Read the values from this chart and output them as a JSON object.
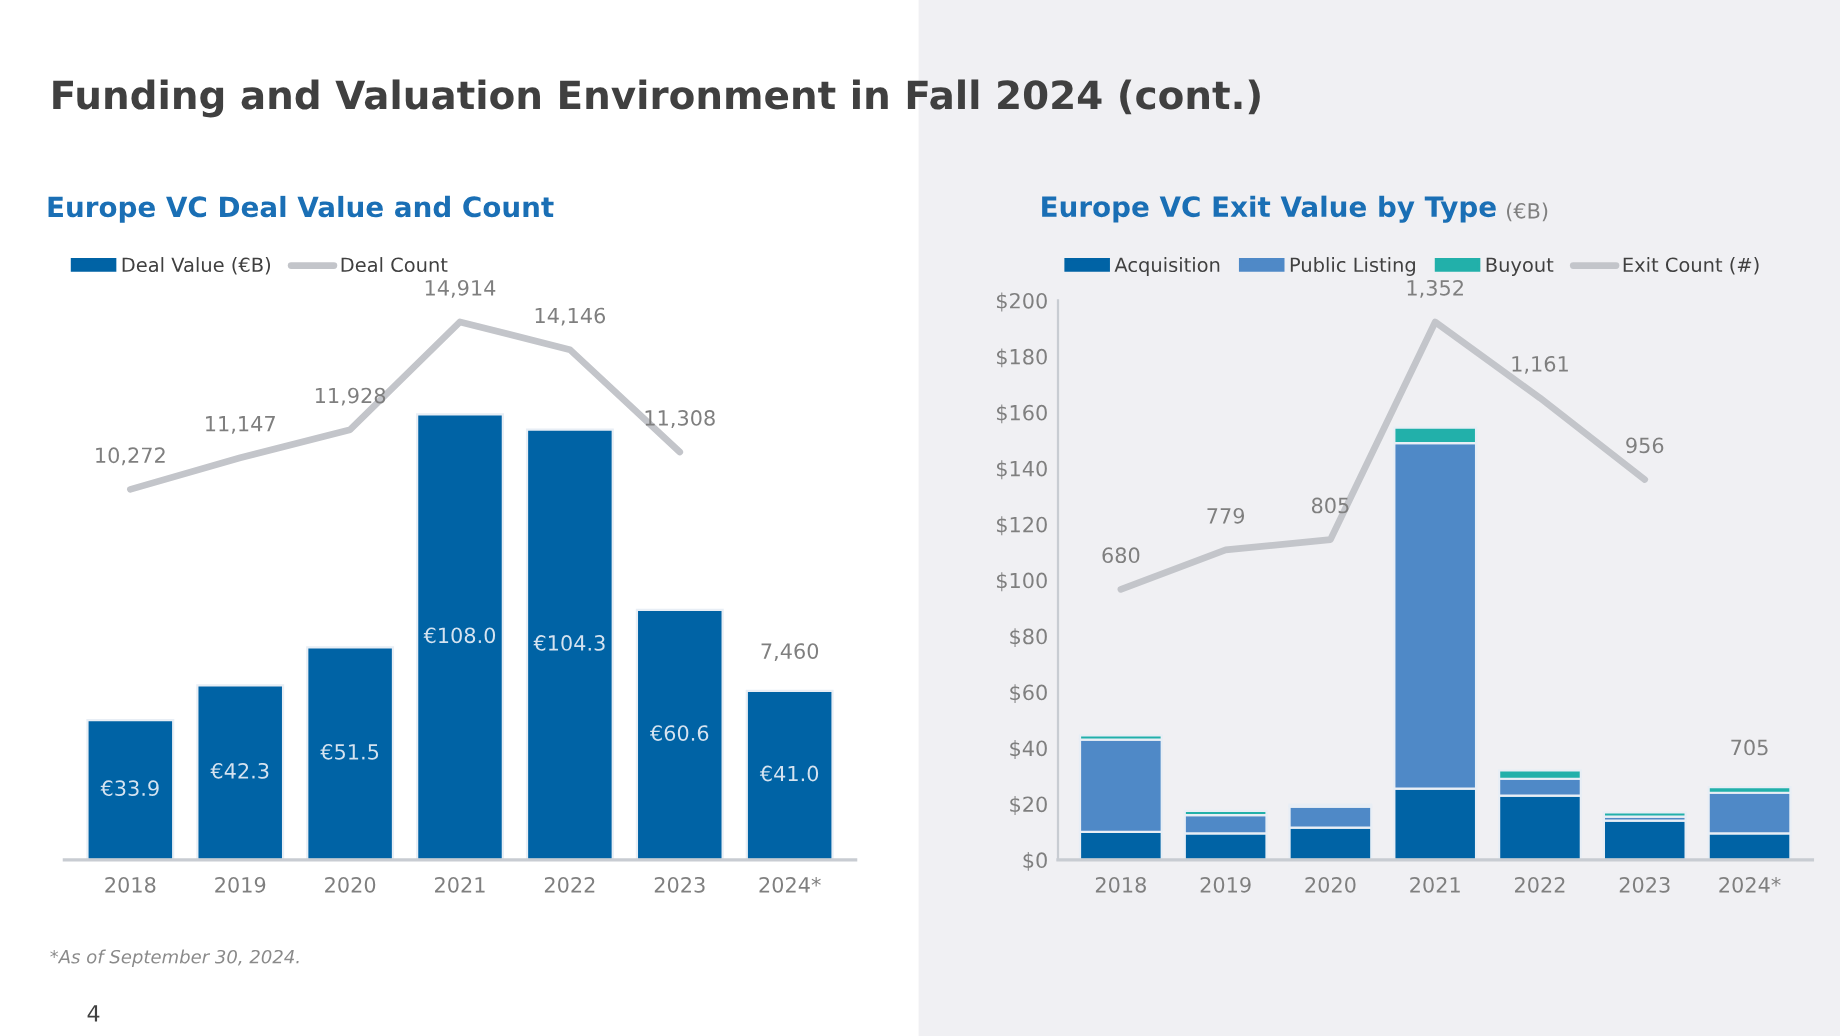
{
  "chart_data": [
    {
      "type": "bar",
      "title": "Europe VC Deal Value and Count",
      "categories": [
        "2018",
        "2019",
        "2020",
        "2021",
        "2022",
        "2023",
        "2024*"
      ],
      "legend": "top left",
      "grid": false,
      "tick_labels": "x",
      "series": [
        {
          "name": "Deal Value (€B)",
          "color": "#0063a5",
          "values": [
            33.9,
            42.3,
            51.5,
            108.0,
            104.3,
            60.6,
            41.0
          ],
          "value_labels": [
            "€33.9",
            "€42.3",
            "€51.5",
            "€108.0",
            "€104.3",
            "€60.6",
            "€41.0"
          ]
        },
        {
          "name": "Deal Count",
          "type": "line",
          "axis": "y2",
          "color": "#c3c5ca",
          "marker": "none",
          "values": [
            10272,
            11147,
            11928,
            14914,
            14146,
            11308,
            null
          ],
          "value_labels": [
            "10,272",
            "11,147",
            "11,928",
            "14,914",
            "14,146",
            "11,308",
            null
          ]
        }
      ],
      "annotations": [
        "Funding and Valuation Environment in Fall 2024 (cont.)",
        "*As of September 30, 2024.",
        "4",
        "7,460"
      ]
    },
    {
      "type": "bar",
      "title": "Europe VC Exit Value by Type",
      "subtitle": "(€B)",
      "categories": [
        "2018",
        "2019",
        "2020",
        "2021",
        "2022",
        "2023",
        "2024*"
      ],
      "stacked": true,
      "legend": "top left",
      "grid": false,
      "ylim": [
        0,
        200
      ],
      "yticks": [
        {
          "value": 0,
          "label": "$0"
        },
        {
          "value": 20,
          "label": "$20"
        },
        {
          "value": 40,
          "label": "$40"
        },
        {
          "value": 60,
          "label": "$60"
        },
        {
          "value": 80,
          "label": "$80"
        },
        {
          "value": 100,
          "label": "$100"
        },
        {
          "value": 120,
          "label": "$120"
        },
        {
          "value": 140,
          "label": "$140"
        },
        {
          "value": 160,
          "label": "$160"
        },
        {
          "value": 180,
          "label": "$180"
        },
        {
          "value": 200,
          "label": "$200"
        }
      ],
      "series": [
        {
          "name": "Acquisition",
          "color": "#0063a5",
          "values": [
            10,
            9.5,
            11.5,
            25.5,
            23,
            14,
            9.5
          ]
        },
        {
          "name": "Public Listing",
          "color": "#4f89c7",
          "values": [
            33,
            6.5,
            7.5,
            123.5,
            6,
            1.5,
            14.5
          ]
        },
        {
          "name": "Buyout",
          "color": "#22b0aa",
          "values": [
            1.5,
            1.5,
            0.8,
            5.5,
            3,
            1.5,
            2
          ]
        },
        {
          "name": "Exit Count (#)",
          "type": "line",
          "axis": "y2",
          "color": "#c3c5ca",
          "marker": "none",
          "values": [
            680,
            779,
            805,
            1352,
            1161,
            956,
            null
          ],
          "value_labels": [
            "680",
            "779",
            "805",
            "1,352",
            "1,161",
            "956",
            null
          ]
        }
      ],
      "annotations": [
        "705"
      ]
    }
  ]
}
